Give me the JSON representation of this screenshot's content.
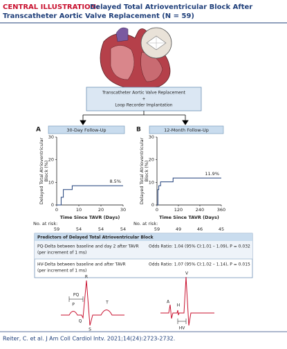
{
  "header": {
    "label": "CENTRAL ILLUSTRATION:",
    "title_line1": "Delayed Total Atrioventricular Block After",
    "title_line2": "Transcatheter Aortic Valve Replacement (N = 59)"
  },
  "procedure": {
    "line1": "Transcatheter Aortic Valve Replacement",
    "line2": "+",
    "line3": "Loop Recorder Implantation"
  },
  "chart_data": [
    {
      "type": "line",
      "panel": "A",
      "title": "30-Day Follow-Up",
      "ylabel": [
        "Delayed Total Atrioventricular",
        "Block (%)"
      ],
      "xlabel": "Time Since TAVR (Days)",
      "x": [
        0,
        2,
        3,
        7,
        30
      ],
      "values": [
        0,
        3.4,
        6.8,
        8.5,
        8.5
      ],
      "color": "#1f3f7a",
      "step": true,
      "annotation": "8.5%",
      "xlim": [
        0,
        30
      ],
      "xticks": [
        0,
        10,
        20,
        30
      ],
      "ylim": [
        0,
        30
      ],
      "yticks": [
        0,
        10,
        20,
        30
      ],
      "grid": false,
      "risk_label": "No. at risk:",
      "risk": [
        59,
        54,
        54,
        54
      ]
    },
    {
      "type": "line",
      "panel": "B",
      "title": "12-Month Follow-Up",
      "ylabel": [
        "Delayed Total Atrioventricular",
        "Block (%)"
      ],
      "xlabel": "Time Since TAVR (Days)",
      "x": [
        0,
        5,
        10,
        20,
        90,
        360
      ],
      "values": [
        0,
        6.8,
        8.5,
        10.2,
        11.9,
        11.9
      ],
      "color": "#1f3f7a",
      "step": true,
      "annotation": "11.9%",
      "xlim": [
        0,
        360
      ],
      "xticks": [
        0,
        120,
        240,
        360
      ],
      "ylim": [
        0,
        30
      ],
      "yticks": [
        0,
        10,
        20,
        30
      ],
      "grid": false,
      "risk_label": "No. at risk:",
      "risk": [
        59,
        49,
        46,
        45
      ]
    }
  ],
  "predictors": {
    "title": "Predictors of Delayed Total Atrioventricular Block",
    "rows": [
      {
        "label": [
          "PQ-Delta between baseline and day 2 after TAVR",
          "(per increment of 1 ms)"
        ],
        "odds": "Odds Ratio: 1.04 (95% CI:1.01 – 1.09), P = 0.032"
      },
      {
        "label": [
          "HV-Delta between baseline and after TAVR",
          "(per increment of 1 ms)"
        ],
        "odds": "Odds Ratio: 1.07 (95% CI:1.02 – 1.14), P = 0.015"
      }
    ]
  },
  "ecg": {
    "surface": [
      "PQ",
      "P",
      "Q",
      "R",
      "S",
      "T"
    ],
    "intracardiac": [
      "A",
      "H",
      "V",
      "HV"
    ]
  },
  "citation": "Reiter, C. et al. J Am Coll Cardiol Intv. 2021;14(24):2723-2732."
}
